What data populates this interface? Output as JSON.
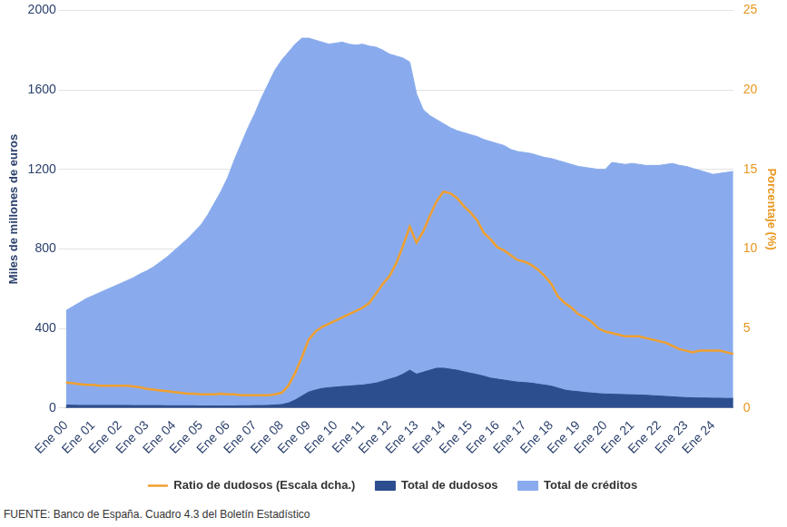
{
  "chart_data": {
    "type": "line",
    "y_label": "Miles de millones de euros",
    "y2_label": "Porcentaje (%)",
    "source": "FUENTE: Banco de España. Cuadro 4.3 del Boletín Estadístico",
    "categories": [
      "Ene 00",
      null,
      null,
      null,
      "Ene 01",
      null,
      null,
      null,
      "Ene 02",
      null,
      null,
      null,
      "Ene 03",
      null,
      null,
      null,
      "Ene 04",
      null,
      null,
      null,
      "Ene 05",
      null,
      null,
      null,
      "Ene 06",
      null,
      null,
      null,
      "Ene 07",
      null,
      null,
      null,
      "Ene 08",
      null,
      null,
      null,
      "Ene 09",
      null,
      null,
      null,
      "Ene 10",
      null,
      null,
      null,
      "Ene 11",
      null,
      null,
      null,
      "Ene 12",
      null,
      null,
      null,
      "Ene 13",
      null,
      null,
      null,
      "Ene 14",
      null,
      null,
      null,
      "Ene 15",
      null,
      null,
      null,
      "Ene 16",
      null,
      null,
      null,
      "Ene 17",
      null,
      null,
      null,
      "Ene 18",
      null,
      null,
      null,
      "Ene 19",
      null,
      null,
      null,
      "Ene 20",
      null,
      null,
      null,
      "Ene 21",
      null,
      null,
      null,
      "Ene 22",
      null,
      null,
      null,
      "Ene 23",
      null,
      null,
      null,
      "Ene 24",
      null,
      null,
      null
    ],
    "series": [
      {
        "name": "Ratio de dudosos (Escala dcha.)",
        "type": "line",
        "axis": "y2",
        "color": "#f0a030",
        "values": [
          1.6,
          1.55,
          1.5,
          1.45,
          1.45,
          1.4,
          1.4,
          1.4,
          1.4,
          1.4,
          1.35,
          1.3,
          1.2,
          1.15,
          1.1,
          1.05,
          1.0,
          0.95,
          0.9,
          0.9,
          0.85,
          0.85,
          0.85,
          0.9,
          0.85,
          0.85,
          0.8,
          0.8,
          0.8,
          0.8,
          0.8,
          0.85,
          0.95,
          1.4,
          2.2,
          3.2,
          4.3,
          4.8,
          5.1,
          5.3,
          5.5,
          5.7,
          5.9,
          6.1,
          6.3,
          6.6,
          7.2,
          7.8,
          8.3,
          9.1,
          10.2,
          11.4,
          10.4,
          11.1,
          12.1,
          13.0,
          13.6,
          13.5,
          13.2,
          12.7,
          12.3,
          11.8,
          11.0,
          10.6,
          10.1,
          9.9,
          9.6,
          9.3,
          9.2,
          9.0,
          8.7,
          8.3,
          7.8,
          7.0,
          6.6,
          6.3,
          5.9,
          5.7,
          5.4,
          5.0,
          4.8,
          4.7,
          4.6,
          4.5,
          4.5,
          4.5,
          4.4,
          4.3,
          4.2,
          4.1,
          3.9,
          3.7,
          3.6,
          3.5,
          3.6,
          3.6,
          3.6,
          3.6,
          3.5,
          3.4
        ]
      },
      {
        "name": "Total de dudosos",
        "type": "area",
        "axis": "y",
        "color": "#2d4e8e",
        "values": [
          14,
          14,
          13,
          13,
          13,
          13,
          13,
          13,
          13,
          13,
          12,
          12,
          12,
          12,
          12,
          11,
          11,
          11,
          11,
          11,
          10,
          10,
          10,
          10,
          10,
          10,
          11,
          11,
          12,
          12,
          13,
          15,
          17,
          25,
          40,
          60,
          80,
          90,
          98,
          102,
          105,
          108,
          110,
          113,
          115,
          120,
          125,
          135,
          145,
          155,
          170,
          190,
          170,
          180,
          190,
          200,
          200,
          195,
          190,
          182,
          175,
          168,
          160,
          150,
          145,
          140,
          135,
          130,
          128,
          125,
          120,
          115,
          110,
          100,
          90,
          85,
          82,
          78,
          75,
          72,
          70,
          69,
          68,
          67,
          66,
          65,
          64,
          62,
          60,
          58,
          56,
          54,
          52,
          51,
          50,
          50,
          49,
          49,
          48,
          48
        ]
      },
      {
        "name": "Total de créditos",
        "type": "area",
        "axis": "y",
        "color": "#89abed",
        "values": [
          490,
          510,
          530,
          550,
          565,
          580,
          595,
          610,
          625,
          640,
          655,
          675,
          690,
          710,
          735,
          760,
          790,
          820,
          850,
          885,
          920,
          970,
          1030,
          1090,
          1160,
          1250,
          1330,
          1410,
          1480,
          1560,
          1630,
          1700,
          1750,
          1790,
          1830,
          1860,
          1860,
          1850,
          1840,
          1830,
          1835,
          1840,
          1830,
          1825,
          1830,
          1820,
          1815,
          1800,
          1780,
          1770,
          1760,
          1740,
          1580,
          1500,
          1470,
          1450,
          1430,
          1410,
          1395,
          1385,
          1375,
          1365,
          1350,
          1340,
          1330,
          1320,
          1300,
          1290,
          1285,
          1280,
          1270,
          1260,
          1255,
          1245,
          1235,
          1225,
          1215,
          1210,
          1205,
          1200,
          1200,
          1235,
          1230,
          1225,
          1230,
          1225,
          1220,
          1220,
          1220,
          1225,
          1230,
          1220,
          1215,
          1205,
          1195,
          1185,
          1175,
          1180,
          1185,
          1190
        ]
      }
    ],
    "ylim": [
      0,
      2000
    ],
    "yticks": [
      0,
      400,
      800,
      1200,
      1600,
      2000
    ],
    "y2lim": [
      0,
      25
    ],
    "y2ticks": [
      0,
      5,
      10,
      15,
      20,
      25
    ],
    "grid": true,
    "legend": "bottom"
  }
}
